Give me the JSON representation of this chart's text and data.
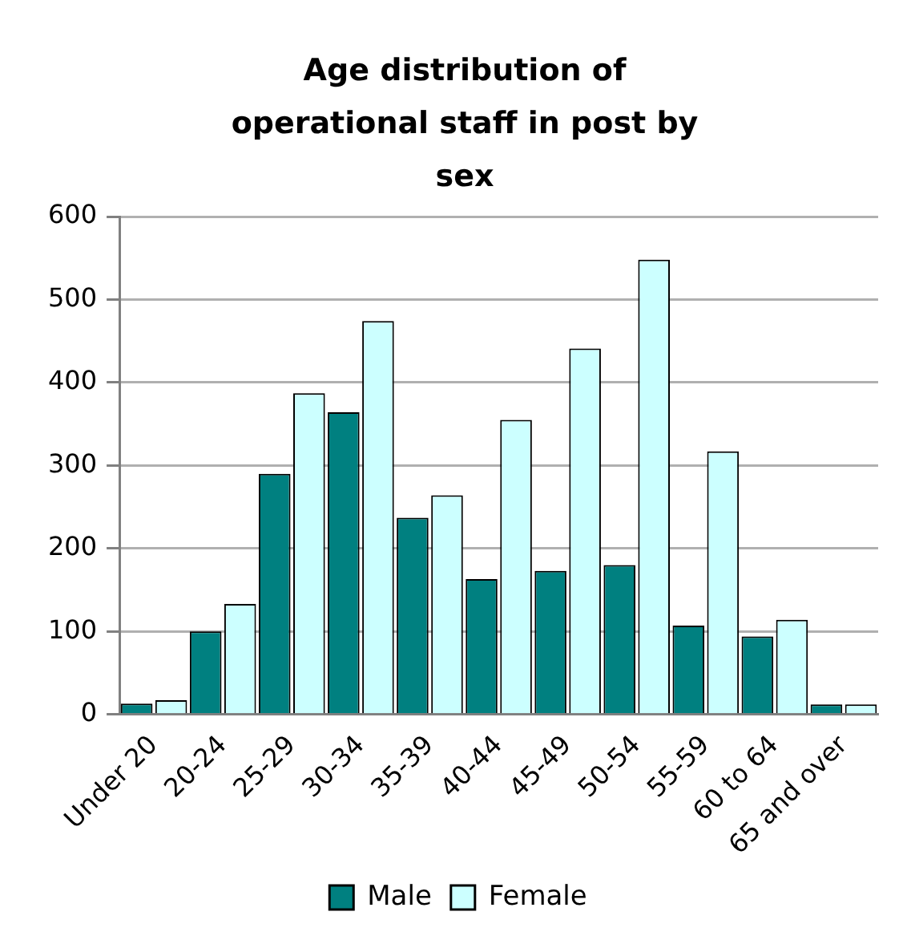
{
  "chart_data": {
    "type": "bar",
    "title": "Age distribution of operational staff in post by sex",
    "categories": [
      "Under 20",
      "20-24",
      "25-29",
      "30-34",
      "35-39",
      "40-44",
      "45-49",
      "50-54",
      "55-59",
      "60 to 64",
      "65 and over"
    ],
    "series": [
      {
        "name": "Male",
        "color": "#008080",
        "values": [
          13,
          100,
          290,
          364,
          237,
          163,
          173,
          180,
          107,
          94,
          12
        ]
      },
      {
        "name": "Female",
        "color": "#ccffff",
        "values": [
          17,
          133,
          387,
          474,
          264,
          355,
          441,
          548,
          317,
          114,
          12
        ]
      }
    ],
    "ylim": [
      0,
      600
    ],
    "yticks": [
      0,
      100,
      200,
      300,
      400,
      500,
      600
    ],
    "grid": "y",
    "legend": "bottom"
  }
}
